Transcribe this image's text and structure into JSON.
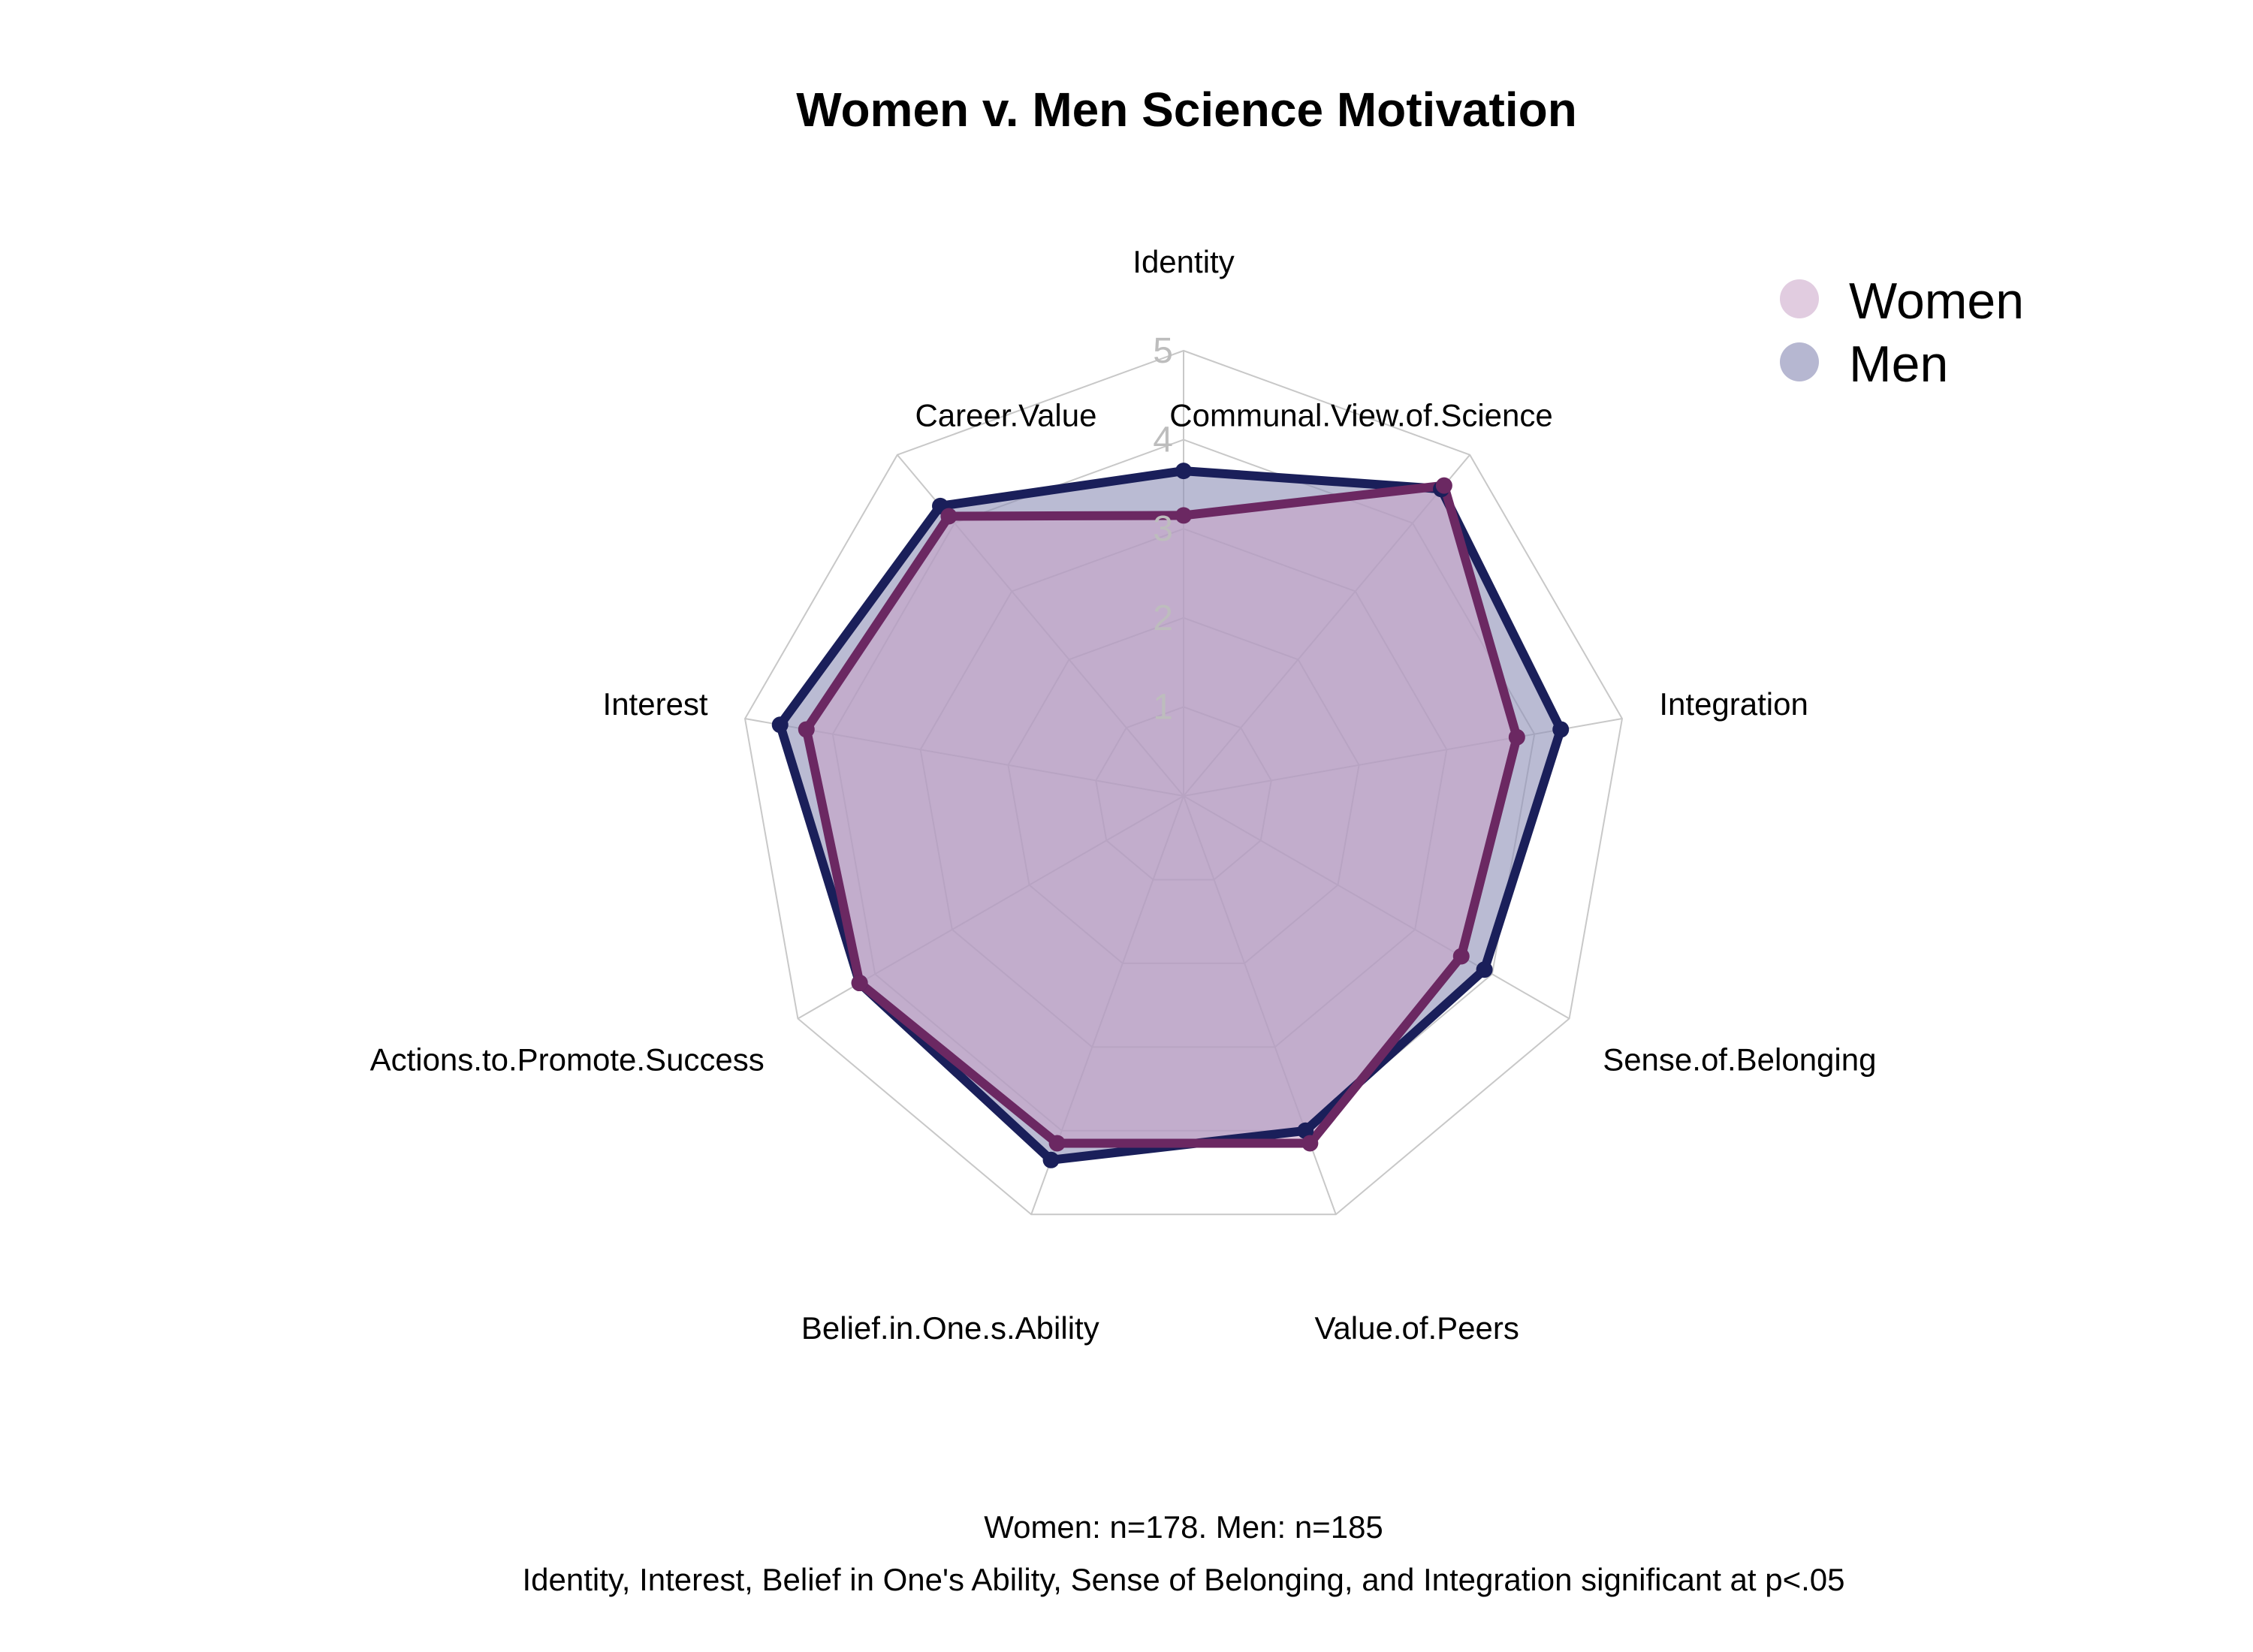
{
  "chart_data": {
    "type": "radar",
    "title": "Women v. Men Science Motivation",
    "axes": [
      "Identity",
      "Communal.View.of.Science",
      "Integration",
      "Sense.of.Belonging",
      "Value.of.Peers",
      "Belief.in.One.s.Ability",
      "Actions.to.Promote.Success",
      "Interest",
      "Career.Value"
    ],
    "range": [
      0,
      5
    ],
    "ticks": [
      "1",
      "2",
      "3",
      "4",
      "5"
    ],
    "series": [
      {
        "name": "Women",
        "color": "#6b2862",
        "fill": "#c9a3c6",
        "values": [
          3.15,
          4.55,
          3.8,
          3.6,
          4.15,
          4.15,
          4.2,
          4.3,
          4.1
        ]
      },
      {
        "name": "Men",
        "color": "#1a1f5a",
        "fill": "#8f91b8",
        "values": [
          3.65,
          4.5,
          4.3,
          3.9,
          4.0,
          4.35,
          4.2,
          4.6,
          4.25
        ]
      }
    ],
    "legend": {
      "position": "top-right",
      "items": [
        "Women",
        "Men"
      ]
    },
    "grid": true,
    "captions": [
      "Women: n=178. Men: n=185",
      "Identity, Interest, Belief in One's Ability, Sense of Belonging, and Integration significant at p<.05"
    ]
  }
}
